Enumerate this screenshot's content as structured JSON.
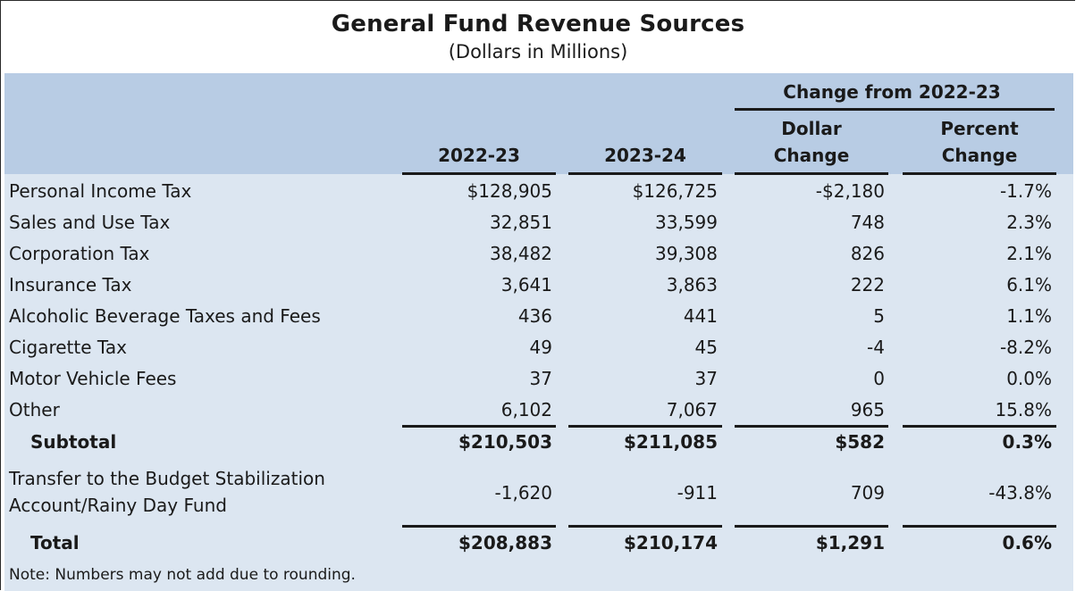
{
  "title": "General Fund Revenue Sources",
  "subtitle": "(Dollars in Millions)",
  "header": {
    "group_label": "Change from 2022-23",
    "col1": "2022-23",
    "col2": "2023-24",
    "col3_line1": "Dollar",
    "col3_line2": "Change",
    "col4_line1": "Percent",
    "col4_line2": "Change"
  },
  "rows": [
    {
      "label": "Personal Income Tax",
      "v1": "$128,905",
      "v2": "$126,725",
      "v3": "-$2,180",
      "v4": "-1.7%"
    },
    {
      "label": "Sales and Use Tax",
      "v1": "32,851",
      "v2": "33,599",
      "v3": "748",
      "v4": "2.3%"
    },
    {
      "label": "Corporation Tax",
      "v1": "38,482",
      "v2": "39,308",
      "v3": "826",
      "v4": "2.1%"
    },
    {
      "label": "Insurance Tax",
      "v1": "3,641",
      "v2": "3,863",
      "v3": "222",
      "v4": "6.1%"
    },
    {
      "label": "Alcoholic Beverage Taxes and Fees",
      "v1": "436",
      "v2": "441",
      "v3": "5",
      "v4": "1.1%"
    },
    {
      "label": "Cigarette Tax",
      "v1": "49",
      "v2": "45",
      "v3": "-4",
      "v4": "-8.2%"
    },
    {
      "label": "Motor Vehicle Fees",
      "v1": "37",
      "v2": "37",
      "v3": "0",
      "v4": "0.0%"
    },
    {
      "label": "Other",
      "v1": "6,102",
      "v2": "7,067",
      "v3": "965",
      "v4": "15.8%"
    }
  ],
  "subtotal": {
    "label": "Subtotal",
    "v1": "$210,503",
    "v2": "$211,085",
    "v3": "$582",
    "v4": "0.3%"
  },
  "transfer": {
    "label_line1": "Transfer to the Budget Stabilization",
    "label_line2": "Account/Rainy Day Fund",
    "v1": "-1,620",
    "v2": "-911",
    "v3": "709",
    "v4": "-43.8%"
  },
  "total": {
    "label": "Total",
    "v1": "$208,883",
    "v2": "$210,174",
    "v3": "$1,291",
    "v4": "0.6%"
  },
  "note": "Note: Numbers may not add due to rounding."
}
